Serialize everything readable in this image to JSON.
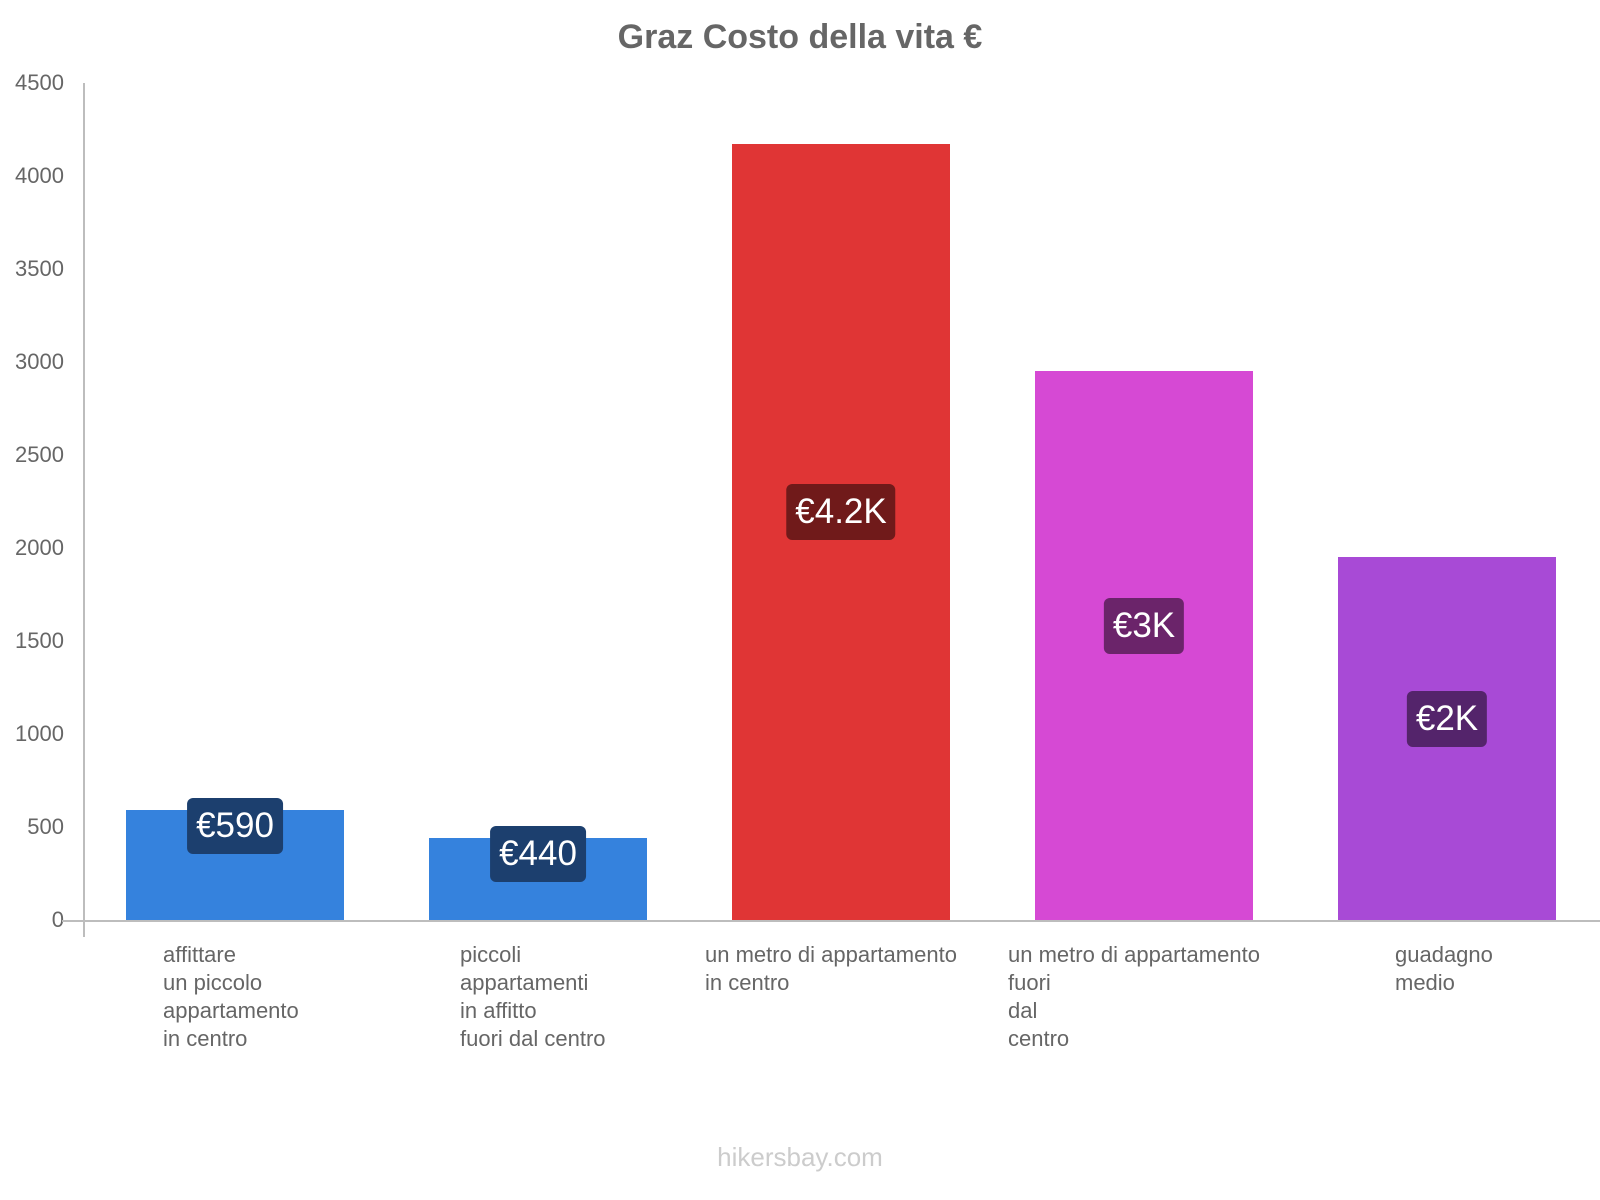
{
  "chart_data": {
    "type": "bar",
    "title": "Graz Costo della vita €",
    "xlabel": "",
    "ylabel": "",
    "ylim": [
      0,
      4500
    ],
    "yticks": [
      0,
      500,
      1000,
      1500,
      2000,
      2500,
      3000,
      3500,
      4000,
      4500
    ],
    "grid": false,
    "legend": null,
    "categories": [
      "affittare\nun piccolo\nappartamento\nin centro",
      "piccoli\nappartamenti\nin affitto\nfuori dal centro",
      "un metro di appartamento\nin centro",
      "un metro di appartamento\nfuori\ndal\ncentro",
      "guadagno\nmedio"
    ],
    "values": [
      590,
      440,
      4170,
      2950,
      1950
    ],
    "data_labels": [
      "€590",
      "€440",
      "€4.2K",
      "€3K",
      "€2K"
    ],
    "colors": [
      "#3582dd",
      "#3582dd",
      "#e03535",
      "#d649d4",
      "#a84ad6"
    ],
    "label_bg_colors": [
      "#1c3f6e",
      "#1c3f6e",
      "#701a1a",
      "#6b246a",
      "#54246b"
    ]
  },
  "header": {
    "title": "Graz Costo della vita €"
  },
  "y_axis": {
    "ticks": [
      "0",
      "500",
      "1000",
      "1500",
      "2000",
      "2500",
      "3000",
      "3500",
      "4000",
      "4500"
    ]
  },
  "bars": [
    {
      "category": "affittare\nun piccolo\nappartamento\nin centro",
      "value": 590,
      "label": "€590",
      "color": "#3582dd",
      "label_bg": "#1c3f6e"
    },
    {
      "category": "piccoli\nappartamenti\nin affitto\nfuori dal centro",
      "value": 440,
      "label": "€440",
      "color": "#3582dd",
      "label_bg": "#1c3f6e"
    },
    {
      "category": "un metro di appartamento\nin centro",
      "value": 4170,
      "label": "€4.2K",
      "color": "#e03535",
      "label_bg": "#701a1a"
    },
    {
      "category": "un metro di appartamento\nfuori\ndal\ncentro",
      "value": 2950,
      "label": "€3K",
      "color": "#d649d4",
      "label_bg": "#6b246a"
    },
    {
      "category": "guadagno\nmedio",
      "value": 1950,
      "label": "€2K",
      "color": "#a84ad6",
      "label_bg": "#54246b"
    }
  ],
  "footer": {
    "watermark": "hikersbay.com"
  }
}
